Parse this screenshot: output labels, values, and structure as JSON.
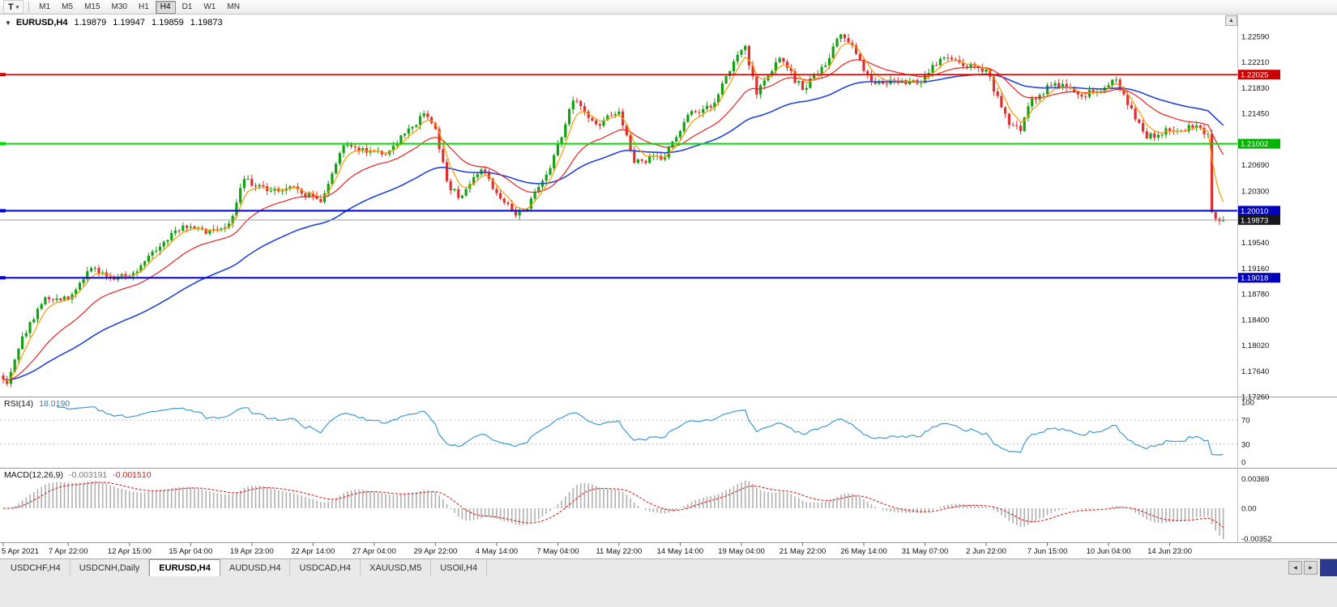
{
  "toolbar": {
    "text_tool": "T",
    "timeframes": [
      "M1",
      "M5",
      "M15",
      "M30",
      "H1",
      "H4",
      "D1",
      "W1",
      "MN"
    ],
    "active_timeframe": "H4"
  },
  "icons": {
    "caret": "▾",
    "header_expand": "▼",
    "scroll_up": "▲",
    "tab_scroll_left": "◂",
    "tab_scroll_right": "▸"
  },
  "chart_data": {
    "type": "candlestick",
    "symbol": "EURUSD",
    "period": "H4",
    "title": "EURUSD,H4",
    "ohlc": {
      "open": "1.19879",
      "high": "1.19947",
      "low": "1.19859",
      "close": "1.19873"
    },
    "colors": {
      "up": "#14a114",
      "down": "#e03030",
      "ma_fast": "#ff9900",
      "ma_mid": "#ee2222",
      "ma_slow": "#2244dd"
    },
    "y_axis_ticks": [
      "1.22590",
      "1.22210",
      "1.21830",
      "1.21450",
      "1.20690",
      "1.20300",
      "1.19540",
      "1.19160",
      "1.18780",
      "1.18400",
      "1.18020",
      "1.17640",
      "1.17260"
    ],
    "y_axis_range": {
      "top": 1.2259,
      "bottom": 1.1726
    },
    "horizontal_lines": [
      {
        "price": 1.22025,
        "label": "1.22025",
        "color": "#dd0000",
        "tag_bg": "#cc0000",
        "width": 1.6
      },
      {
        "price": 1.21002,
        "label": "1.21002",
        "color": "#00dd00",
        "tag_bg": "#00b400",
        "width": 2
      },
      {
        "price": 1.2001,
        "label": "1.20010",
        "color": "#0000dd",
        "tag_bg": "#0000bb",
        "width": 2
      },
      {
        "price": 1.19018,
        "label": "1.19018",
        "color": "#0000dd",
        "tag_bg": "#0000bb",
        "width": 2
      }
    ],
    "current_price": {
      "value": 1.19873,
      "label": "1.19873",
      "tag_bg": "#17171c",
      "line_color": "#9a9a9a"
    },
    "time_labels": [
      {
        "i": 0,
        "t": "5 Apr 2021"
      },
      {
        "i": 17,
        "t": "7 Apr 22:00"
      },
      {
        "i": 33,
        "t": "12 Apr 15:00"
      },
      {
        "i": 49,
        "t": "15 Apr 04:00"
      },
      {
        "i": 65,
        "t": "19 Apr 23:00"
      },
      {
        "i": 81,
        "t": "22 Apr 14:00"
      },
      {
        "i": 97,
        "t": "27 Apr 04:00"
      },
      {
        "i": 113,
        "t": "29 Apr 22:00"
      },
      {
        "i": 129,
        "t": "4 May 14:00"
      },
      {
        "i": 145,
        "t": "7 May 04:00"
      },
      {
        "i": 161,
        "t": "11 May 22:00"
      },
      {
        "i": 177,
        "t": "14 May 14:00"
      },
      {
        "i": 193,
        "t": "19 May 04:00"
      },
      {
        "i": 209,
        "t": "21 May 22:00"
      },
      {
        "i": 225,
        "t": "26 May 14:00"
      },
      {
        "i": 241,
        "t": "31 May 07:00"
      },
      {
        "i": 257,
        "t": "2 Jun 22:00"
      },
      {
        "i": 273,
        "t": "7 Jun 15:00"
      },
      {
        "i": 289,
        "t": "10 Jun 04:00"
      },
      {
        "i": 305,
        "t": "14 Jun 23:00"
      }
    ],
    "price_path": {
      "start": 1.1767,
      "segments": [
        [
          2,
          1.1745
        ],
        [
          4,
          1.1815
        ],
        [
          6,
          1.1873
        ],
        [
          6,
          1.187
        ],
        [
          6,
          1.1916
        ],
        [
          6,
          1.1899
        ],
        [
          6,
          1.1911
        ],
        [
          6,
          1.1948
        ],
        [
          6,
          1.1979
        ],
        [
          6,
          1.1967
        ],
        [
          6,
          1.1982
        ],
        [
          4,
          1.2048
        ],
        [
          2,
          1.2038
        ],
        [
          6,
          1.2034
        ],
        [
          6,
          1.2033
        ],
        [
          6,
          1.2014
        ],
        [
          6,
          1.2098
        ],
        [
          6,
          1.2087
        ],
        [
          6,
          1.209
        ],
        [
          6,
          1.2125
        ],
        [
          3,
          1.2145
        ],
        [
          3,
          1.2122
        ],
        [
          3,
          1.2045
        ],
        [
          3,
          1.202
        ],
        [
          6,
          1.2062
        ],
        [
          6,
          1.2013
        ],
        [
          3,
          1.1994
        ],
        [
          3,
          1.2004
        ],
        [
          6,
          1.2064
        ],
        [
          6,
          1.2164
        ],
        [
          6,
          1.2129
        ],
        [
          6,
          1.2148
        ],
        [
          4,
          1.2072
        ],
        [
          2,
          1.2075
        ],
        [
          6,
          1.208
        ],
        [
          6,
          1.2143
        ],
        [
          6,
          1.2154
        ],
        [
          6,
          1.2222
        ],
        [
          3,
          1.2245
        ],
        [
          3,
          1.2173
        ],
        [
          6,
          1.2227
        ],
        [
          6,
          1.218
        ],
        [
          6,
          1.2216
        ],
        [
          4,
          1.2262
        ],
        [
          2,
          1.225
        ],
        [
          6,
          1.2192
        ],
        [
          6,
          1.2194
        ],
        [
          6,
          1.2189
        ],
        [
          6,
          1.2226
        ],
        [
          6,
          1.2215
        ],
        [
          6,
          1.221
        ],
        [
          6,
          1.2128
        ],
        [
          3,
          1.2119
        ],
        [
          3,
          1.2167
        ],
        [
          6,
          1.219
        ],
        [
          6,
          1.2173
        ],
        [
          6,
          1.2178
        ],
        [
          4,
          1.2195
        ],
        [
          2,
          1.2173
        ],
        [
          6,
          1.2108
        ],
        [
          6,
          1.212
        ],
        [
          6,
          1.2124
        ],
        [
          4,
          1.2115
        ],
        [
          1,
          1.1999
        ],
        [
          1,
          1.1989
        ],
        [
          2,
          1.19873
        ]
      ]
    },
    "indicators": {
      "rsi": {
        "name": "RSI(14)",
        "value": "18.0190",
        "levels": [
          "100",
          "70",
          "30",
          "0"
        ],
        "level_lines": [
          70,
          30
        ],
        "color": "#3e9ad6"
      },
      "macd": {
        "name": "MACD(12,26,9)",
        "main_value": "-0.003191",
        "signal_value": "-0.001510",
        "axis_labels": [
          "0.00369",
          "0.00",
          "-0.00352"
        ],
        "hist_color": "#b0b0b0",
        "signal_color": "#e02020"
      }
    }
  },
  "tabbar": {
    "tabs": [
      "USDCHF,H4",
      "USDCNH,Daily",
      "EURUSD,H4",
      "AUDUSD,H4",
      "USDCAD,H4",
      "XAUUSD,M5",
      "USOil,H4"
    ],
    "active": "EURUSD,H4"
  }
}
